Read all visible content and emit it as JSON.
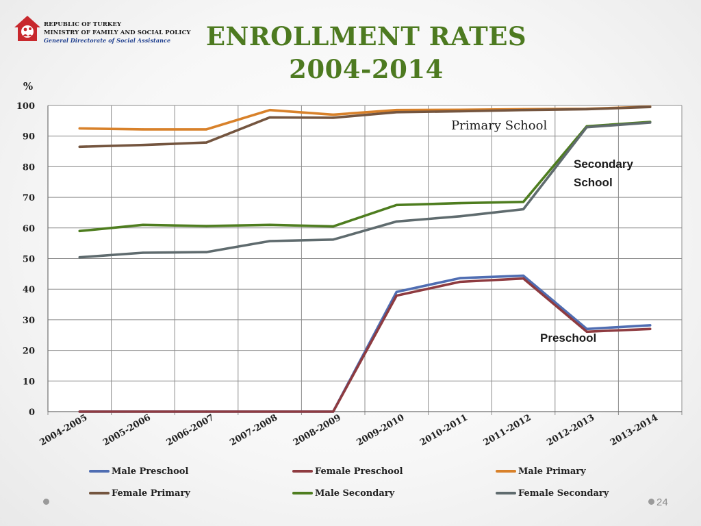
{
  "header": {
    "org_line1": "REPUBLIC OF TURKEY",
    "org_line2": "MINISTRY OF FAMILY AND SOCIAL POLICY",
    "org_line3": "General Directorate of Social Assistance",
    "logo_icon": "ministry-logo-icon"
  },
  "title_line1": "ENROLLMENT RATES",
  "title_line2": "2004-2014",
  "annotations": {
    "primary": "Primary School",
    "secondary_line1": "Secondary",
    "secondary_line2": "School",
    "preschool": "Preschool"
  },
  "page_number": "24",
  "chart_data": {
    "type": "line",
    "title": "ENROLLMENT RATES 2004-2014",
    "ylabel": "%",
    "xlabel": "",
    "ylim": [
      0,
      100
    ],
    "yticks": [
      0,
      10,
      20,
      30,
      40,
      50,
      60,
      70,
      80,
      90,
      100
    ],
    "grid": true,
    "legend_position": "bottom",
    "categories": [
      "2004-2005",
      "2005-2006",
      "2006-2007",
      "2007-2008",
      "2008-2009",
      "2009-2010",
      "2010-2011",
      "2011-2012",
      "2012-2013",
      "2013-2014"
    ],
    "series": [
      {
        "name": "Male Preschool",
        "color": "#4f6db2",
        "values": [
          0,
          0,
          0,
          0,
          0,
          39.1,
          43.6,
          44.4,
          27.0,
          28.2
        ]
      },
      {
        "name": "Female Preschool",
        "color": "#8e3b40",
        "values": [
          0,
          0,
          0,
          0,
          0,
          37.9,
          42.4,
          43.5,
          26.1,
          27.0
        ]
      },
      {
        "name": "Male Primary",
        "color": "#d8812a",
        "values": [
          92.5,
          92.2,
          92.2,
          98.5,
          97.0,
          98.5,
          98.6,
          98.8,
          98.9,
          99.6
        ]
      },
      {
        "name": "Female Primary",
        "color": "#74553f",
        "values": [
          86.5,
          87.1,
          87.9,
          96.1,
          96.0,
          97.8,
          98.1,
          98.5,
          98.8,
          99.5
        ]
      },
      {
        "name": "Male Secondary",
        "color": "#4e7d1f",
        "values": [
          59.0,
          61.0,
          60.6,
          61.0,
          60.5,
          67.5,
          68.1,
          68.5,
          93.2,
          94.6
        ]
      },
      {
        "name": "Female Secondary",
        "color": "#5f6b6e",
        "values": [
          50.4,
          51.9,
          52.1,
          55.7,
          56.2,
          62.1,
          63.8,
          66.1,
          92.9,
          94.4
        ]
      }
    ]
  }
}
